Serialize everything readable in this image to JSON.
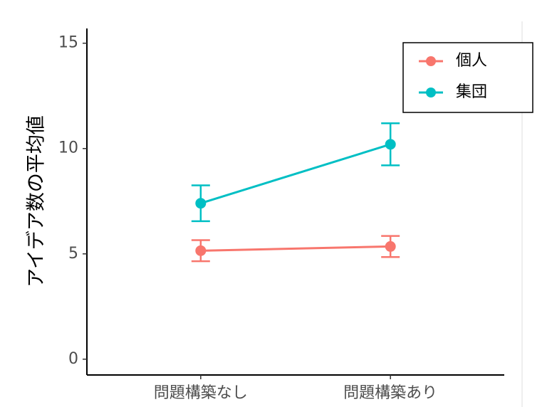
{
  "chart_data": {
    "type": "line",
    "y_label": "アイデア数の平均値",
    "categories": [
      "問題構築なし",
      "問題構築あり"
    ],
    "series": [
      {
        "name": "個人",
        "color": "#f8766d",
        "values": [
          5.15,
          5.35
        ],
        "errors": [
          0.5,
          0.5
        ]
      },
      {
        "name": "集団",
        "color": "#00bfc4",
        "values": [
          7.4,
          10.2
        ],
        "errors": [
          0.85,
          1.0
        ]
      }
    ],
    "ylim": [
      -0.75,
      15.7
    ],
    "yticks": [
      0,
      5,
      10,
      15
    ],
    "legend": "top-right"
  }
}
